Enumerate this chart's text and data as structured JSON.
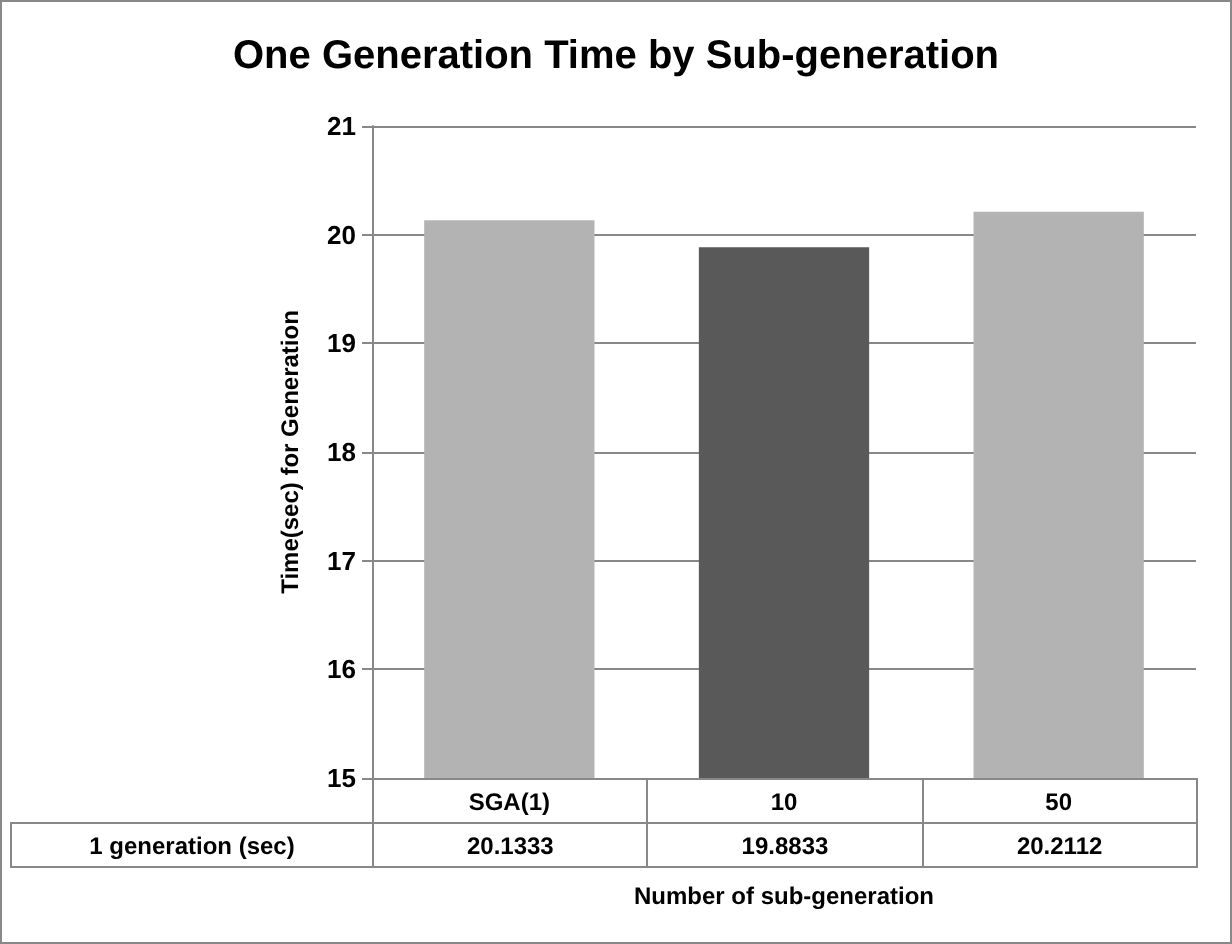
{
  "chart_data": {
    "type": "bar",
    "title": "One Generation Time by Sub-generation",
    "xlabel": "Number of sub-generation",
    "ylabel": "Time(sec) for Generation",
    "categories": [
      "SGA(1)",
      "10",
      "50"
    ],
    "series": [
      {
        "name": "1 generation (sec)",
        "colors": [
          "#b3b3b3",
          "#595959",
          "#b3b3b3"
        ],
        "values": [
          20.1333,
          19.8833,
          20.2112
        ]
      }
    ],
    "ylim": [
      15,
      21
    ],
    "yticks": [
      15,
      16,
      17,
      18,
      19,
      20,
      21
    ],
    "grid": "y",
    "legend": false,
    "data_labels": true
  }
}
